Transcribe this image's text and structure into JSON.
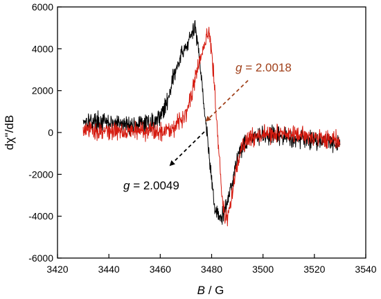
{
  "chart_data": {
    "type": "line",
    "xlabel_var": "B",
    "xlabel_unit": " / G",
    "ylabel": "dχ''/dB",
    "xlim": [
      3420,
      3540
    ],
    "ylim": [
      -6000,
      6000
    ],
    "x_ticks": [
      3420,
      3440,
      3460,
      3480,
      3500,
      3520,
      3540
    ],
    "y_ticks": [
      -6000,
      -4000,
      -2000,
      0,
      2000,
      4000,
      6000
    ],
    "x_tick_labels": [
      "3420",
      "3440",
      "3460",
      "3480",
      "3500",
      "3520",
      "3540"
    ],
    "y_tick_labels": [
      "-6000",
      "-4000",
      "-2000",
      "0",
      "2000",
      "4000",
      "6000"
    ],
    "grid": false,
    "series": [
      {
        "color": "#000000",
        "x": [
          3430,
          3440,
          3450,
          3458,
          3462,
          3465,
          3468,
          3470,
          3472,
          3473.5,
          3475,
          3476.5,
          3478,
          3479,
          3480,
          3481,
          3482,
          3484,
          3486,
          3488,
          3490,
          3492,
          3495,
          3500,
          3505,
          3510,
          3515,
          3520,
          3525,
          3530
        ],
        "y": [
          600,
          450,
          350,
          500,
          1200,
          2600,
          3600,
          4100,
          4600,
          5000,
          4000,
          2000,
          200,
          -1200,
          -2200,
          -3400,
          -3900,
          -4100,
          -3400,
          -2300,
          -1200,
          -600,
          -300,
          -150,
          -200,
          -250,
          -300,
          -350,
          -400,
          -500
        ]
      },
      {
        "color": "#d51a0f",
        "x": [
          3430,
          3440,
          3450,
          3460,
          3465,
          3468,
          3470,
          3472,
          3474,
          3476,
          3478,
          3479,
          3480,
          3481,
          3482,
          3483,
          3484,
          3485,
          3486,
          3487,
          3488,
          3490,
          3492,
          3495,
          3500,
          3505,
          3510,
          3515,
          3520,
          3525,
          3530
        ],
        "y": [
          100,
          50,
          100,
          50,
          250,
          600,
          1000,
          1700,
          2800,
          3700,
          4500,
          4800,
          4000,
          2500,
          500,
          -1200,
          -3000,
          -3900,
          -4100,
          -3700,
          -2900,
          -1500,
          -700,
          -250,
          -100,
          -50,
          -100,
          -150,
          -200,
          -300,
          -400
        ]
      }
    ],
    "annotations": [
      {
        "var": "g",
        "text": " = 2.0018",
        "color": "#a0401a"
      },
      {
        "var": "g",
        "text": " = 2.0049",
        "color": "#000000"
      }
    ]
  }
}
